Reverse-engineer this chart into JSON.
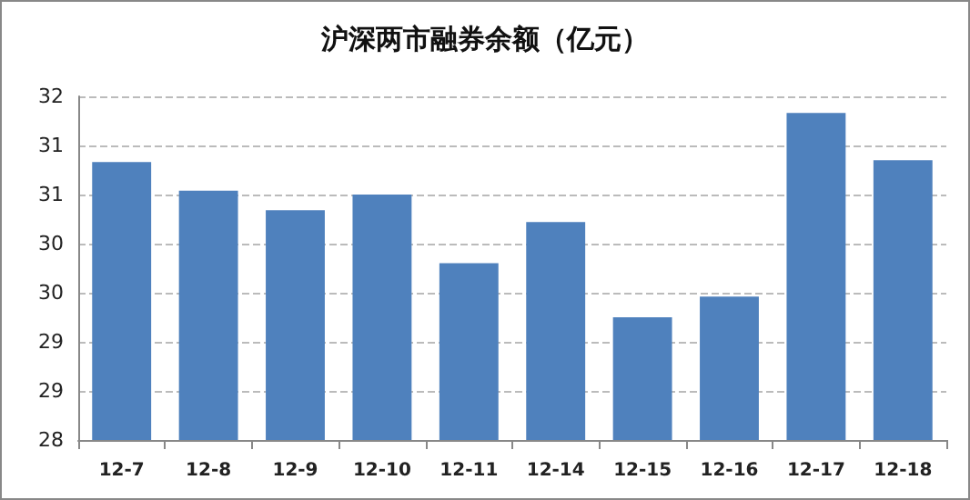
{
  "chart_data": {
    "type": "bar",
    "title": "沪深两市融券余额（亿元）",
    "categories": [
      "12-7",
      "12-8",
      "12-9",
      "12-10",
      "12-11",
      "12-14",
      "12-15",
      "12-16",
      "12-17",
      "12-18"
    ],
    "values": [
      30.83,
      30.54,
      30.34,
      30.5,
      29.8,
      30.22,
      29.25,
      29.46,
      31.33,
      30.85
    ],
    "color": "#4f81bd",
    "ylim": [
      28,
      31.5
    ],
    "yticks": [
      {
        "value": 28,
        "label": "28"
      },
      {
        "value": 28.5,
        "label": "29"
      },
      {
        "value": 29,
        "label": "29"
      },
      {
        "value": 29.5,
        "label": "30"
      },
      {
        "value": 30,
        "label": "30"
      },
      {
        "value": 30.5,
        "label": "31"
      },
      {
        "value": 31,
        "label": "31"
      },
      {
        "value": 31.5,
        "label": "32"
      }
    ],
    "grid": "y",
    "line_style": "dashed"
  }
}
